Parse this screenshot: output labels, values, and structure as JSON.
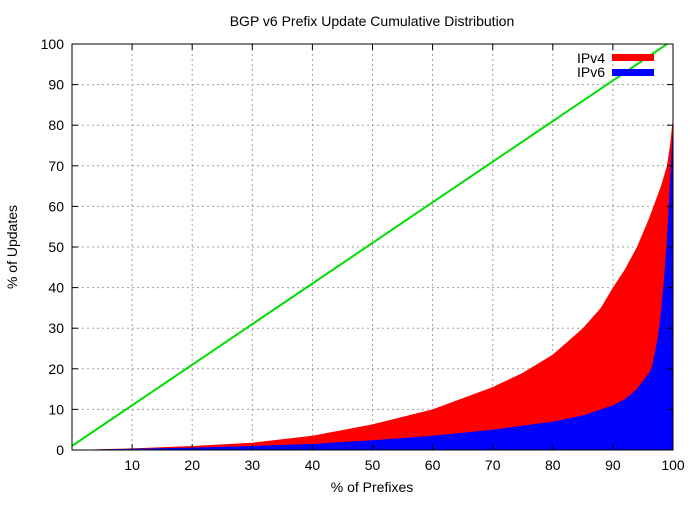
{
  "chart_data": {
    "type": "area",
    "title": "BGP v6 Prefix Update Cumulative Distribution",
    "xlabel": "% of Prefixes",
    "ylabel": "% of Updates",
    "xlim": [
      0,
      100
    ],
    "ylim": [
      0,
      100
    ],
    "x_ticks": [
      10,
      20,
      30,
      40,
      50,
      60,
      70,
      80,
      90,
      100
    ],
    "y_ticks": [
      0,
      10,
      20,
      30,
      40,
      50,
      60,
      70,
      80,
      90,
      100
    ],
    "grid": true,
    "legend_position": "top-right",
    "series": [
      {
        "name": "IPv4",
        "color": "#ff0000",
        "x": [
          0,
          10,
          20,
          30,
          40,
          50,
          60,
          70,
          75,
          80,
          85,
          88,
          90,
          92,
          94,
          96,
          97,
          98,
          99,
          99.5,
          100
        ],
        "values": [
          0,
          0.4,
          1.0,
          1.8,
          3.5,
          6.3,
          10,
          15.5,
          19,
          23.5,
          30,
          35,
          40,
          44.5,
          50,
          57,
          61,
          65,
          70,
          75,
          82
        ]
      },
      {
        "name": "IPv6",
        "color": "#0000ff",
        "x": [
          0,
          10,
          20,
          30,
          40,
          50,
          60,
          70,
          80,
          85,
          90,
          92,
          94,
          95,
          96,
          96.5,
          97,
          97.5,
          98,
          98.5,
          99,
          99.5,
          100
        ],
        "values": [
          0,
          0.3,
          0.6,
          1.0,
          1.5,
          2.4,
          3.5,
          5.0,
          7.0,
          8.5,
          11,
          12.5,
          15,
          17,
          19,
          20.5,
          24,
          28,
          34,
          42,
          52,
          66,
          80
        ]
      },
      {
        "name": "",
        "color": "#00dd00",
        "x": [
          0,
          100
        ],
        "values": [
          1,
          101
        ]
      }
    ]
  }
}
